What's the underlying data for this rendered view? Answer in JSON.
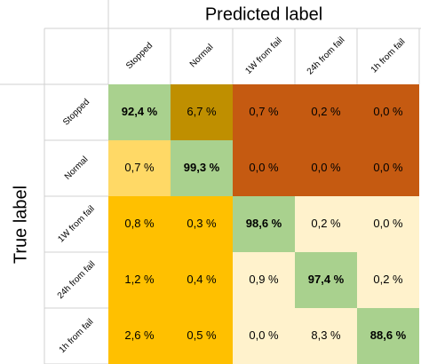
{
  "chart_data": {
    "type": "heatmap",
    "x_label": "Predicted label",
    "y_label": "True label",
    "x_categories": [
      "Stopped",
      "Normal",
      "1W from fail",
      "24h from fail",
      "1h from fail"
    ],
    "y_categories": [
      "Stopped",
      "Normal",
      "1W from fail",
      "24h from fail",
      "1h from fail"
    ],
    "values": [
      [
        92.4,
        6.7,
        0.7,
        0.2,
        0.0
      ],
      [
        0.7,
        99.3,
        0.0,
        0.0,
        0.0
      ],
      [
        0.8,
        0.3,
        98.6,
        0.2,
        0.0
      ],
      [
        1.2,
        0.4,
        0.9,
        97.4,
        0.2
      ],
      [
        2.6,
        0.5,
        0.0,
        8.3,
        88.6
      ]
    ],
    "value_labels": [
      [
        "92,4 %",
        "6,7 %",
        "0,7 %",
        "0,2 %",
        "0,0 %"
      ],
      [
        "0,7 %",
        "99,3 %",
        "0,0 %",
        "0,0 %",
        "0,0 %"
      ],
      [
        "0,8 %",
        "0,3 %",
        "98,6 %",
        "0,2 %",
        "0,0 %"
      ],
      [
        "1,2 %",
        "0,4 %",
        "0,9 %",
        "97,4 %",
        "0,2 %"
      ],
      [
        "2,6 %",
        "0,5 %",
        "0,0 %",
        "8,3 %",
        "88,6 %"
      ]
    ],
    "colors": [
      [
        "#a9d18e",
        "#bf8f00",
        "#c55a11",
        "#c55a11",
        "#c55a11"
      ],
      [
        "#ffd966",
        "#a9d18e",
        "#c55a11",
        "#c55a11",
        "#c55a11"
      ],
      [
        "#ffc000",
        "#ffc000",
        "#a9d18e",
        "#fff2cc",
        "#fff2cc"
      ],
      [
        "#ffc000",
        "#ffc000",
        "#fff2cc",
        "#a9d18e",
        "#fff2cc"
      ],
      [
        "#ffc000",
        "#ffc000",
        "#fff2cc",
        "#fff2cc",
        "#a9d18e"
      ]
    ]
  }
}
